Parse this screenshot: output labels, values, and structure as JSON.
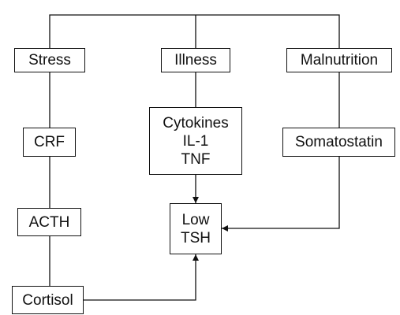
{
  "diagram": {
    "nodes": {
      "stress": "Stress",
      "illness": "Illness",
      "malnutrition": "Malnutrition",
      "crf": "CRF",
      "cytokines": [
        "Cytokines",
        "IL-1",
        "TNF"
      ],
      "somatostatin": "Somatostatin",
      "acth": "ACTH",
      "low_tsh": [
        "Low",
        "TSH"
      ],
      "cortisol": "Cortisol"
    },
    "edges": [
      {
        "from": "root-bus",
        "to": "stress",
        "arrow": false
      },
      {
        "from": "root-bus",
        "to": "illness",
        "arrow": false
      },
      {
        "from": "root-bus",
        "to": "malnutrition",
        "arrow": false
      },
      {
        "from": "stress",
        "to": "crf",
        "arrow": false
      },
      {
        "from": "crf",
        "to": "acth",
        "arrow": false
      },
      {
        "from": "acth",
        "to": "cortisol",
        "arrow": false
      },
      {
        "from": "illness",
        "to": "cytokines",
        "arrow": false
      },
      {
        "from": "cytokines",
        "to": "low_tsh",
        "arrow": true
      },
      {
        "from": "malnutrition",
        "to": "somatostatin",
        "arrow": false
      },
      {
        "from": "somatostatin",
        "to": "low_tsh",
        "arrow": true
      },
      {
        "from": "cortisol",
        "to": "low_tsh",
        "arrow": true
      }
    ],
    "colors": {
      "line": "#111111",
      "box_border": "#111111",
      "background": "#ffffff",
      "text": "#111111"
    }
  }
}
